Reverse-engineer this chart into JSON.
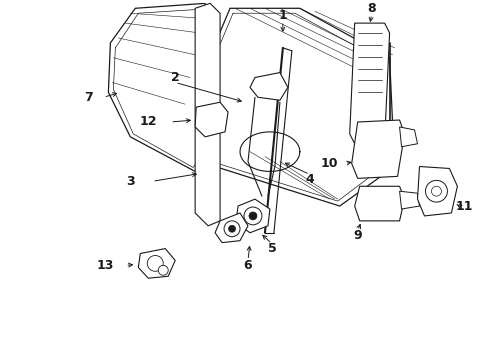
{
  "bg_color": "#ffffff",
  "lc": "#1a1a1a",
  "figsize": [
    4.9,
    3.6
  ],
  "dpi": 100,
  "xlim": [
    0,
    490
  ],
  "ylim": [
    0,
    360
  ]
}
